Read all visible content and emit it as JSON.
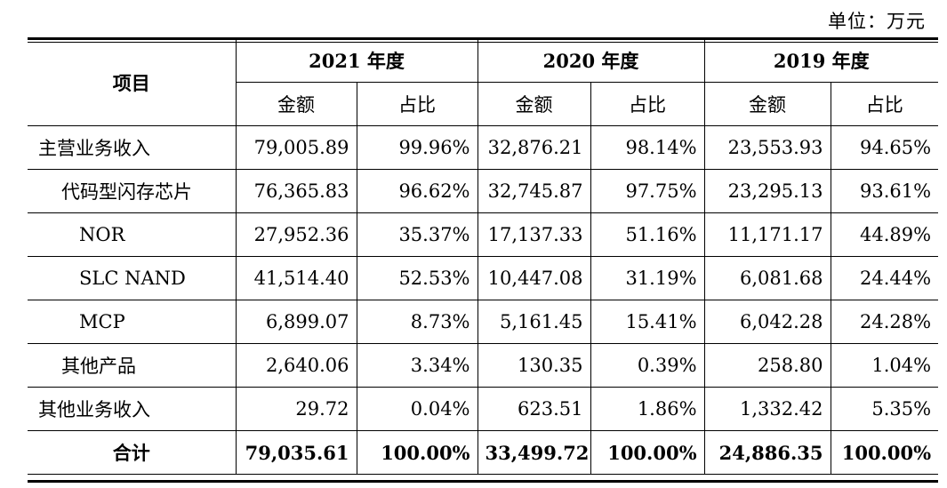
{
  "unit_label": "单位：万元",
  "header": {
    "item": "项目",
    "years": [
      "2021 年度",
      "2020 年度",
      "2019 年度"
    ],
    "amount": "金额",
    "ratio": "占比"
  },
  "rows": [
    {
      "label": "主营业务收入",
      "level": 0,
      "v": [
        "79,005.89",
        "99.96%",
        "32,876.21",
        "98.14%",
        "23,553.93",
        "94.65%"
      ]
    },
    {
      "label": "代码型闪存芯片",
      "level": 1,
      "v": [
        "76,365.83",
        "96.62%",
        "32,745.87",
        "97.75%",
        "23,295.13",
        "93.61%"
      ]
    },
    {
      "label": "NOR",
      "level": 2,
      "v": [
        "27,952.36",
        "35.37%",
        "17,137.33",
        "51.16%",
        "11,171.17",
        "44.89%"
      ]
    },
    {
      "label": "SLC NAND",
      "level": 2,
      "v": [
        "41,514.40",
        "52.53%",
        "10,447.08",
        "31.19%",
        "6,081.68",
        "24.44%"
      ]
    },
    {
      "label": "MCP",
      "level": 2,
      "v": [
        "6,899.07",
        "8.73%",
        "5,161.45",
        "15.41%",
        "6,042.28",
        "24.28%"
      ]
    },
    {
      "label": "其他产品",
      "level": 1,
      "v": [
        "2,640.06",
        "3.34%",
        "130.35",
        "0.39%",
        "258.80",
        "1.04%"
      ]
    },
    {
      "label": "其他业务收入",
      "level": 0,
      "v": [
        "29.72",
        "0.04%",
        "623.51",
        "1.86%",
        "1,332.42",
        "5.35%"
      ]
    }
  ],
  "total": {
    "label": "合计",
    "v": [
      "79,035.61",
      "100.00%",
      "33,499.72",
      "100.00%",
      "24,886.35",
      "100.00%"
    ]
  }
}
